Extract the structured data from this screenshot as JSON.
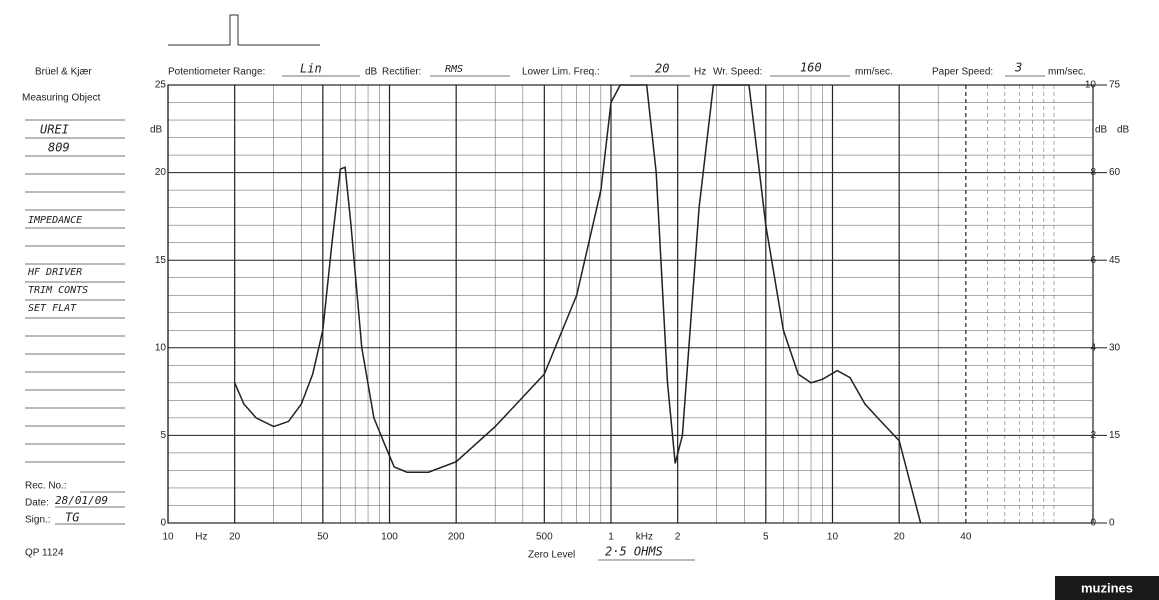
{
  "form": {
    "brand": "Brüel & Kjær",
    "object_label": "Measuring Object",
    "object_lines": [
      "UREI",
      "809",
      "IMPEDANCE",
      "HF DRIVER",
      "TRIM CONTS",
      "SET FLAT"
    ],
    "pot_label": "Potentiometer Range:",
    "pot_value": "Lin",
    "pot_unit": "dB",
    "rect_label": "Rectifier:",
    "rect_value": "RMS",
    "llf_label": "Lower Lim. Freq.:",
    "llf_value": "20",
    "llf_unit": "Hz",
    "wr_label": "Wr. Speed:",
    "wr_value": "160",
    "wr_unit": "mm/sec.",
    "ps_label": "Paper Speed:",
    "ps_value": "3",
    "ps_unit": "mm/sec.",
    "rec_label": "Rec. No.:",
    "date_label": "Date:",
    "date_value": "28/01/09",
    "sign_label": "Sign.:",
    "sign_value": "TG",
    "form_no": "QP 1124",
    "zero_label": "Zero Level",
    "zero_value": "2·5 OHMS",
    "logo": "muzines"
  },
  "chart_data": {
    "type": "line",
    "log_x": true,
    "xlim": [
      10,
      150000
    ],
    "ylim": [
      0,
      25
    ],
    "xticks": [
      10,
      20,
      50,
      100,
      200,
      500,
      {
        "value": 1000,
        "label": "1"
      },
      {
        "value": 2000,
        "label": "2"
      },
      {
        "value": 5000,
        "label": "5"
      },
      {
        "value": 10000,
        "label": "10"
      },
      {
        "value": 20000,
        "label": "20"
      },
      {
        "value": 40000,
        "label": "40"
      }
    ],
    "x_unit_hz": "Hz",
    "x_unit_khz": "kHz",
    "xgrid": [
      30,
      40,
      60,
      70,
      80,
      90,
      300,
      400,
      600,
      700,
      800,
      900,
      3000,
      4000,
      6000,
      7000,
      8000,
      9000,
      30000,
      50000,
      60000,
      70000,
      80000,
      90000,
      100000
    ],
    "yticks": [
      0,
      5,
      10,
      15,
      20,
      25
    ],
    "ygrid": [
      1,
      2,
      3,
      4,
      6,
      7,
      8,
      9,
      11,
      12,
      13,
      14,
      16,
      17,
      18,
      19,
      21,
      22,
      23,
      24
    ],
    "y_label": "dB",
    "y2lim": [
      0,
      10
    ],
    "y2ticks": [
      0,
      2,
      4,
      6,
      8,
      10
    ],
    "y3lim": [
      0,
      75
    ],
    "y3ticks": [
      0,
      15,
      30,
      45,
      60,
      75
    ],
    "y3_label": "dB",
    "grid": true,
    "series": [
      {
        "name": "Impedance",
        "color": "#222222",
        "x": [
          20,
          22,
          25,
          30,
          35,
          40,
          45,
          50,
          55,
          60,
          63,
          67,
          75,
          85,
          95,
          105,
          120,
          150,
          200,
          300,
          500,
          700,
          900,
          1000,
          1100,
          1450,
          1600,
          1800,
          1950,
          2100,
          2500,
          2900,
          4200,
          5000,
          6000,
          7000,
          8000,
          9000,
          10500,
          12000,
          14000,
          16000,
          20000,
          25000
        ],
        "values": [
          8,
          6.8,
          6,
          5.5,
          5.8,
          6.8,
          8.5,
          11,
          16,
          20.2,
          20.3,
          17,
          10,
          6,
          4.5,
          3.2,
          2.9,
          2.9,
          3.5,
          5.5,
          8.5,
          13,
          19,
          24,
          25,
          25,
          20,
          8,
          3.4,
          5,
          18,
          25,
          25,
          17,
          11,
          8.5,
          8,
          8.2,
          8.7,
          8.3,
          6.8,
          6,
          4.7,
          0
        ]
      }
    ]
  }
}
